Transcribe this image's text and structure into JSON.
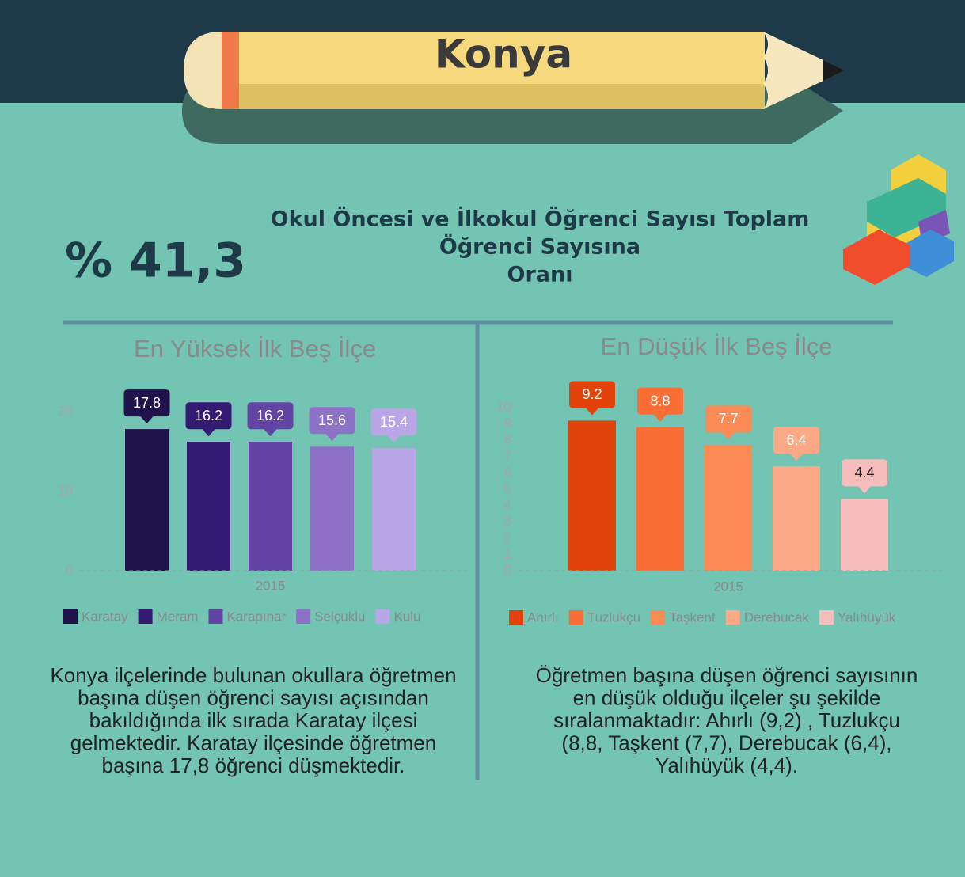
{
  "header": {
    "title": "Konya"
  },
  "stat": "% 41,3",
  "subtitle": [
    "Okul Öncesi ve İlkokul Öğrenci Sayısı Toplam",
    "Öğrenci Sayısına",
    "Oranı"
  ],
  "chart_data": [
    {
      "type": "bar",
      "title": "En Yüksek İlk Beş İlçe",
      "categories": [
        "2015"
      ],
      "series": [
        {
          "name": "Karatay",
          "color": "#20124a",
          "values": [
            17.8
          ]
        },
        {
          "name": "Meram",
          "color": "#341a73",
          "values": [
            16.2
          ]
        },
        {
          "name": "Karapınar",
          "color": "#6244a5",
          "values": [
            16.2
          ]
        },
        {
          "name": "Selçuklu",
          "color": "#8d72c8",
          "values": [
            15.6
          ]
        },
        {
          "name": "Kulu",
          "color": "#b9a6e6",
          "values": [
            15.4
          ]
        }
      ],
      "ylim": [
        0,
        20
      ],
      "yticks": [
        0,
        10,
        20
      ]
    },
    {
      "type": "bar",
      "title": "En Düşük İlk Beş İlçe",
      "categories": [
        "2015"
      ],
      "series": [
        {
          "name": "Ahırlı",
          "color": "#e2430b",
          "values": [
            9.2
          ]
        },
        {
          "name": "Tuzlukçu",
          "color": "#fa6e35",
          "values": [
            8.8
          ]
        },
        {
          "name": "Taşkent",
          "color": "#fb8a55",
          "values": [
            7.7
          ]
        },
        {
          "name": "Derebucak",
          "color": "#fba987",
          "values": [
            6.4
          ]
        },
        {
          "name": "Yalıhüyük",
          "color": "#f6bdbc",
          "values": [
            4.4
          ]
        }
      ],
      "ylim": [
        0,
        10
      ],
      "yticks": [
        0,
        1,
        2,
        3,
        4,
        5,
        6,
        7,
        8,
        9,
        10
      ]
    }
  ],
  "notes": [
    [
      "Konya ilçelerinde bulunan okullara öğretmen",
      "başına düşen öğrenci sayısı açısından",
      "bakıldığında ilk sırada Karatay ilçesi",
      "gelmektedir. Karatay ilçesinde öğretmen",
      "başına 17,8 öğrenci düşmektedir."
    ],
    [
      "Öğretmen başına düşen öğrenci sayısının",
      "en düşük olduğu ilçeler şu şekilde",
      "sıralanmaktadır: Ahırlı (9,2) , Tuzlukçu",
      "(8,8, Taşkent (7,7), Derebucak (6,4),",
      "Yalıhüyük (4,4)."
    ]
  ]
}
